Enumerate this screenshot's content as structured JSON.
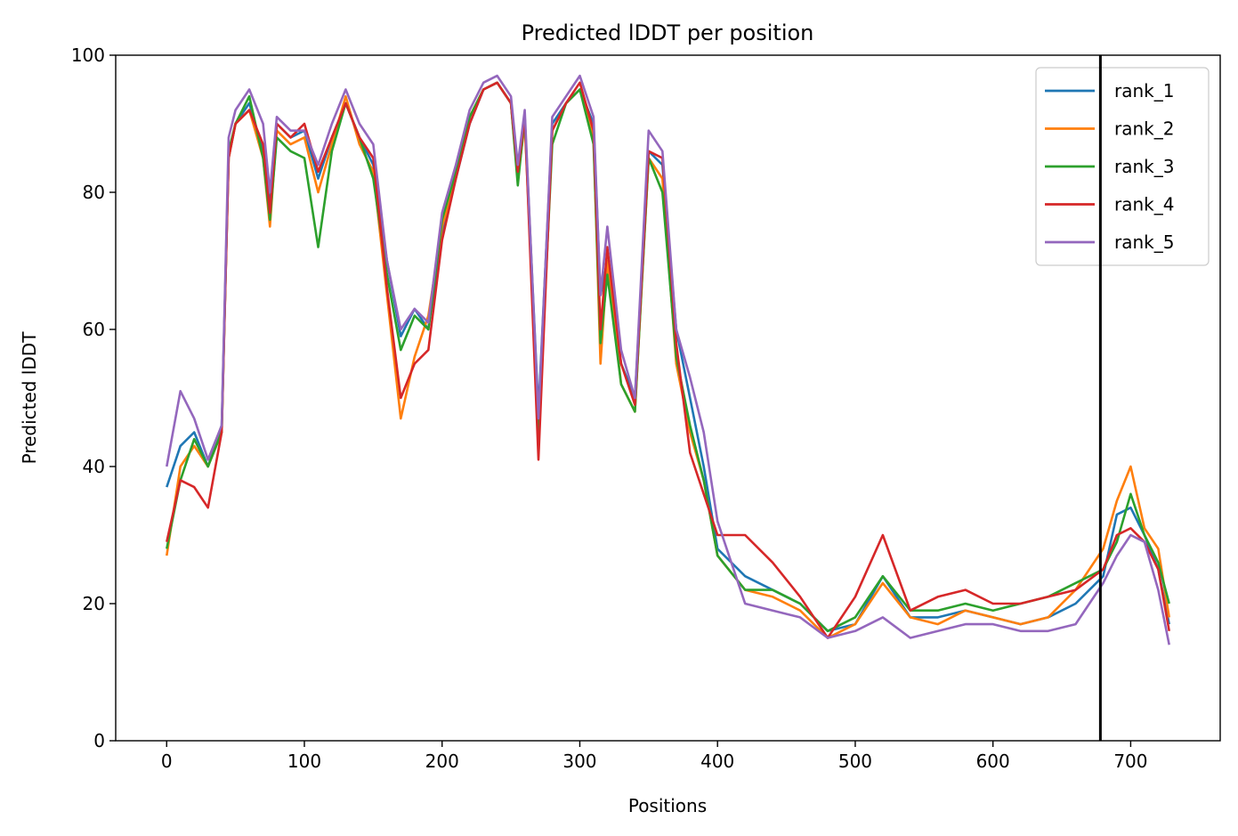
{
  "chart_data": {
    "type": "line",
    "title": "Predicted lDDT per position",
    "xlabel": "Positions",
    "ylabel": "Predicted lDDT",
    "xlim": [
      -37,
      765
    ],
    "ylim": [
      0,
      100
    ],
    "x_ticks": [
      0,
      100,
      200,
      300,
      400,
      500,
      600,
      700
    ],
    "y_ticks": [
      0,
      20,
      40,
      60,
      80,
      100
    ],
    "grid": false,
    "legend": "top-right",
    "vline_x": 678,
    "vline_color": "#000000",
    "x": [
      0,
      10,
      20,
      30,
      40,
      45,
      50,
      60,
      70,
      75,
      80,
      90,
      100,
      110,
      120,
      130,
      140,
      150,
      160,
      170,
      180,
      190,
      200,
      210,
      220,
      230,
      240,
      250,
      255,
      260,
      270,
      280,
      290,
      300,
      310,
      315,
      320,
      330,
      340,
      350,
      360,
      370,
      380,
      390,
      400,
      420,
      440,
      460,
      480,
      500,
      520,
      540,
      560,
      580,
      600,
      620,
      640,
      660,
      680,
      690,
      700,
      710,
      720,
      728
    ],
    "series": [
      {
        "name": "rank_1",
        "color": "#1f77b4",
        "values": [
          37,
          43,
          45,
          40,
          46,
          85,
          90,
          93,
          86,
          78,
          90,
          88,
          89,
          82,
          88,
          93,
          88,
          84,
          70,
          59,
          63,
          60,
          74,
          82,
          90,
          95,
          96,
          93,
          82,
          91,
          48,
          90,
          93,
          95,
          90,
          65,
          70,
          55,
          50,
          86,
          84,
          60,
          50,
          40,
          28,
          24,
          22,
          20,
          16,
          17,
          24,
          18,
          18,
          19,
          18,
          17,
          18,
          20,
          24,
          33,
          34,
          30,
          25,
          17
        ]
      },
      {
        "name": "rank_2",
        "color": "#ff7f0e",
        "values": [
          27,
          40,
          43,
          40,
          45,
          85,
          90,
          92,
          85,
          75,
          89,
          87,
          88,
          80,
          87,
          94,
          87,
          83,
          65,
          47,
          56,
          62,
          75,
          82,
          91,
          95,
          96,
          93,
          82,
          90,
          46,
          89,
          93,
          95,
          88,
          55,
          70,
          52,
          48,
          85,
          82,
          55,
          45,
          38,
          27,
          22,
          21,
          19,
          15,
          17,
          23,
          18,
          17,
          19,
          18,
          17,
          18,
          22,
          28,
          35,
          40,
          31,
          28,
          18
        ]
      },
      {
        "name": "rank_3",
        "color": "#2ca02c",
        "values": [
          28,
          38,
          44,
          40,
          45,
          86,
          90,
          94,
          85,
          76,
          88,
          86,
          85,
          72,
          86,
          93,
          88,
          82,
          68,
          57,
          62,
          60,
          76,
          83,
          91,
          95,
          96,
          93,
          81,
          91,
          45,
          87,
          93,
          95,
          87,
          58,
          68,
          52,
          48,
          85,
          80,
          56,
          46,
          38,
          27,
          22,
          22,
          20,
          16,
          18,
          24,
          19,
          19,
          20,
          19,
          20,
          21,
          23,
          25,
          29,
          36,
          30,
          26,
          20
        ]
      },
      {
        "name": "rank_4",
        "color": "#d62728",
        "values": [
          29,
          38,
          37,
          34,
          45,
          85,
          90,
          92,
          87,
          77,
          90,
          88,
          90,
          83,
          88,
          93,
          88,
          85,
          66,
          50,
          55,
          57,
          73,
          82,
          90,
          95,
          96,
          93,
          83,
          91,
          41,
          89,
          93,
          96,
          89,
          60,
          72,
          55,
          49,
          86,
          85,
          58,
          42,
          36,
          30,
          30,
          26,
          21,
          15,
          21,
          30,
          19,
          21,
          22,
          20,
          20,
          21,
          22,
          25,
          30,
          31,
          29,
          25,
          16
        ]
      },
      {
        "name": "rank_5",
        "color": "#9467bd",
        "values": [
          40,
          51,
          47,
          41,
          46,
          88,
          92,
          95,
          90,
          80,
          91,
          89,
          89,
          84,
          90,
          95,
          90,
          87,
          70,
          60,
          63,
          61,
          77,
          84,
          92,
          96,
          97,
          94,
          84,
          92,
          47,
          91,
          94,
          97,
          91,
          65,
          75,
          57,
          50,
          89,
          86,
          60,
          53,
          45,
          32,
          20,
          19,
          18,
          15,
          16,
          18,
          15,
          16,
          17,
          17,
          16,
          16,
          17,
          23,
          27,
          30,
          29,
          22,
          14
        ]
      }
    ]
  }
}
